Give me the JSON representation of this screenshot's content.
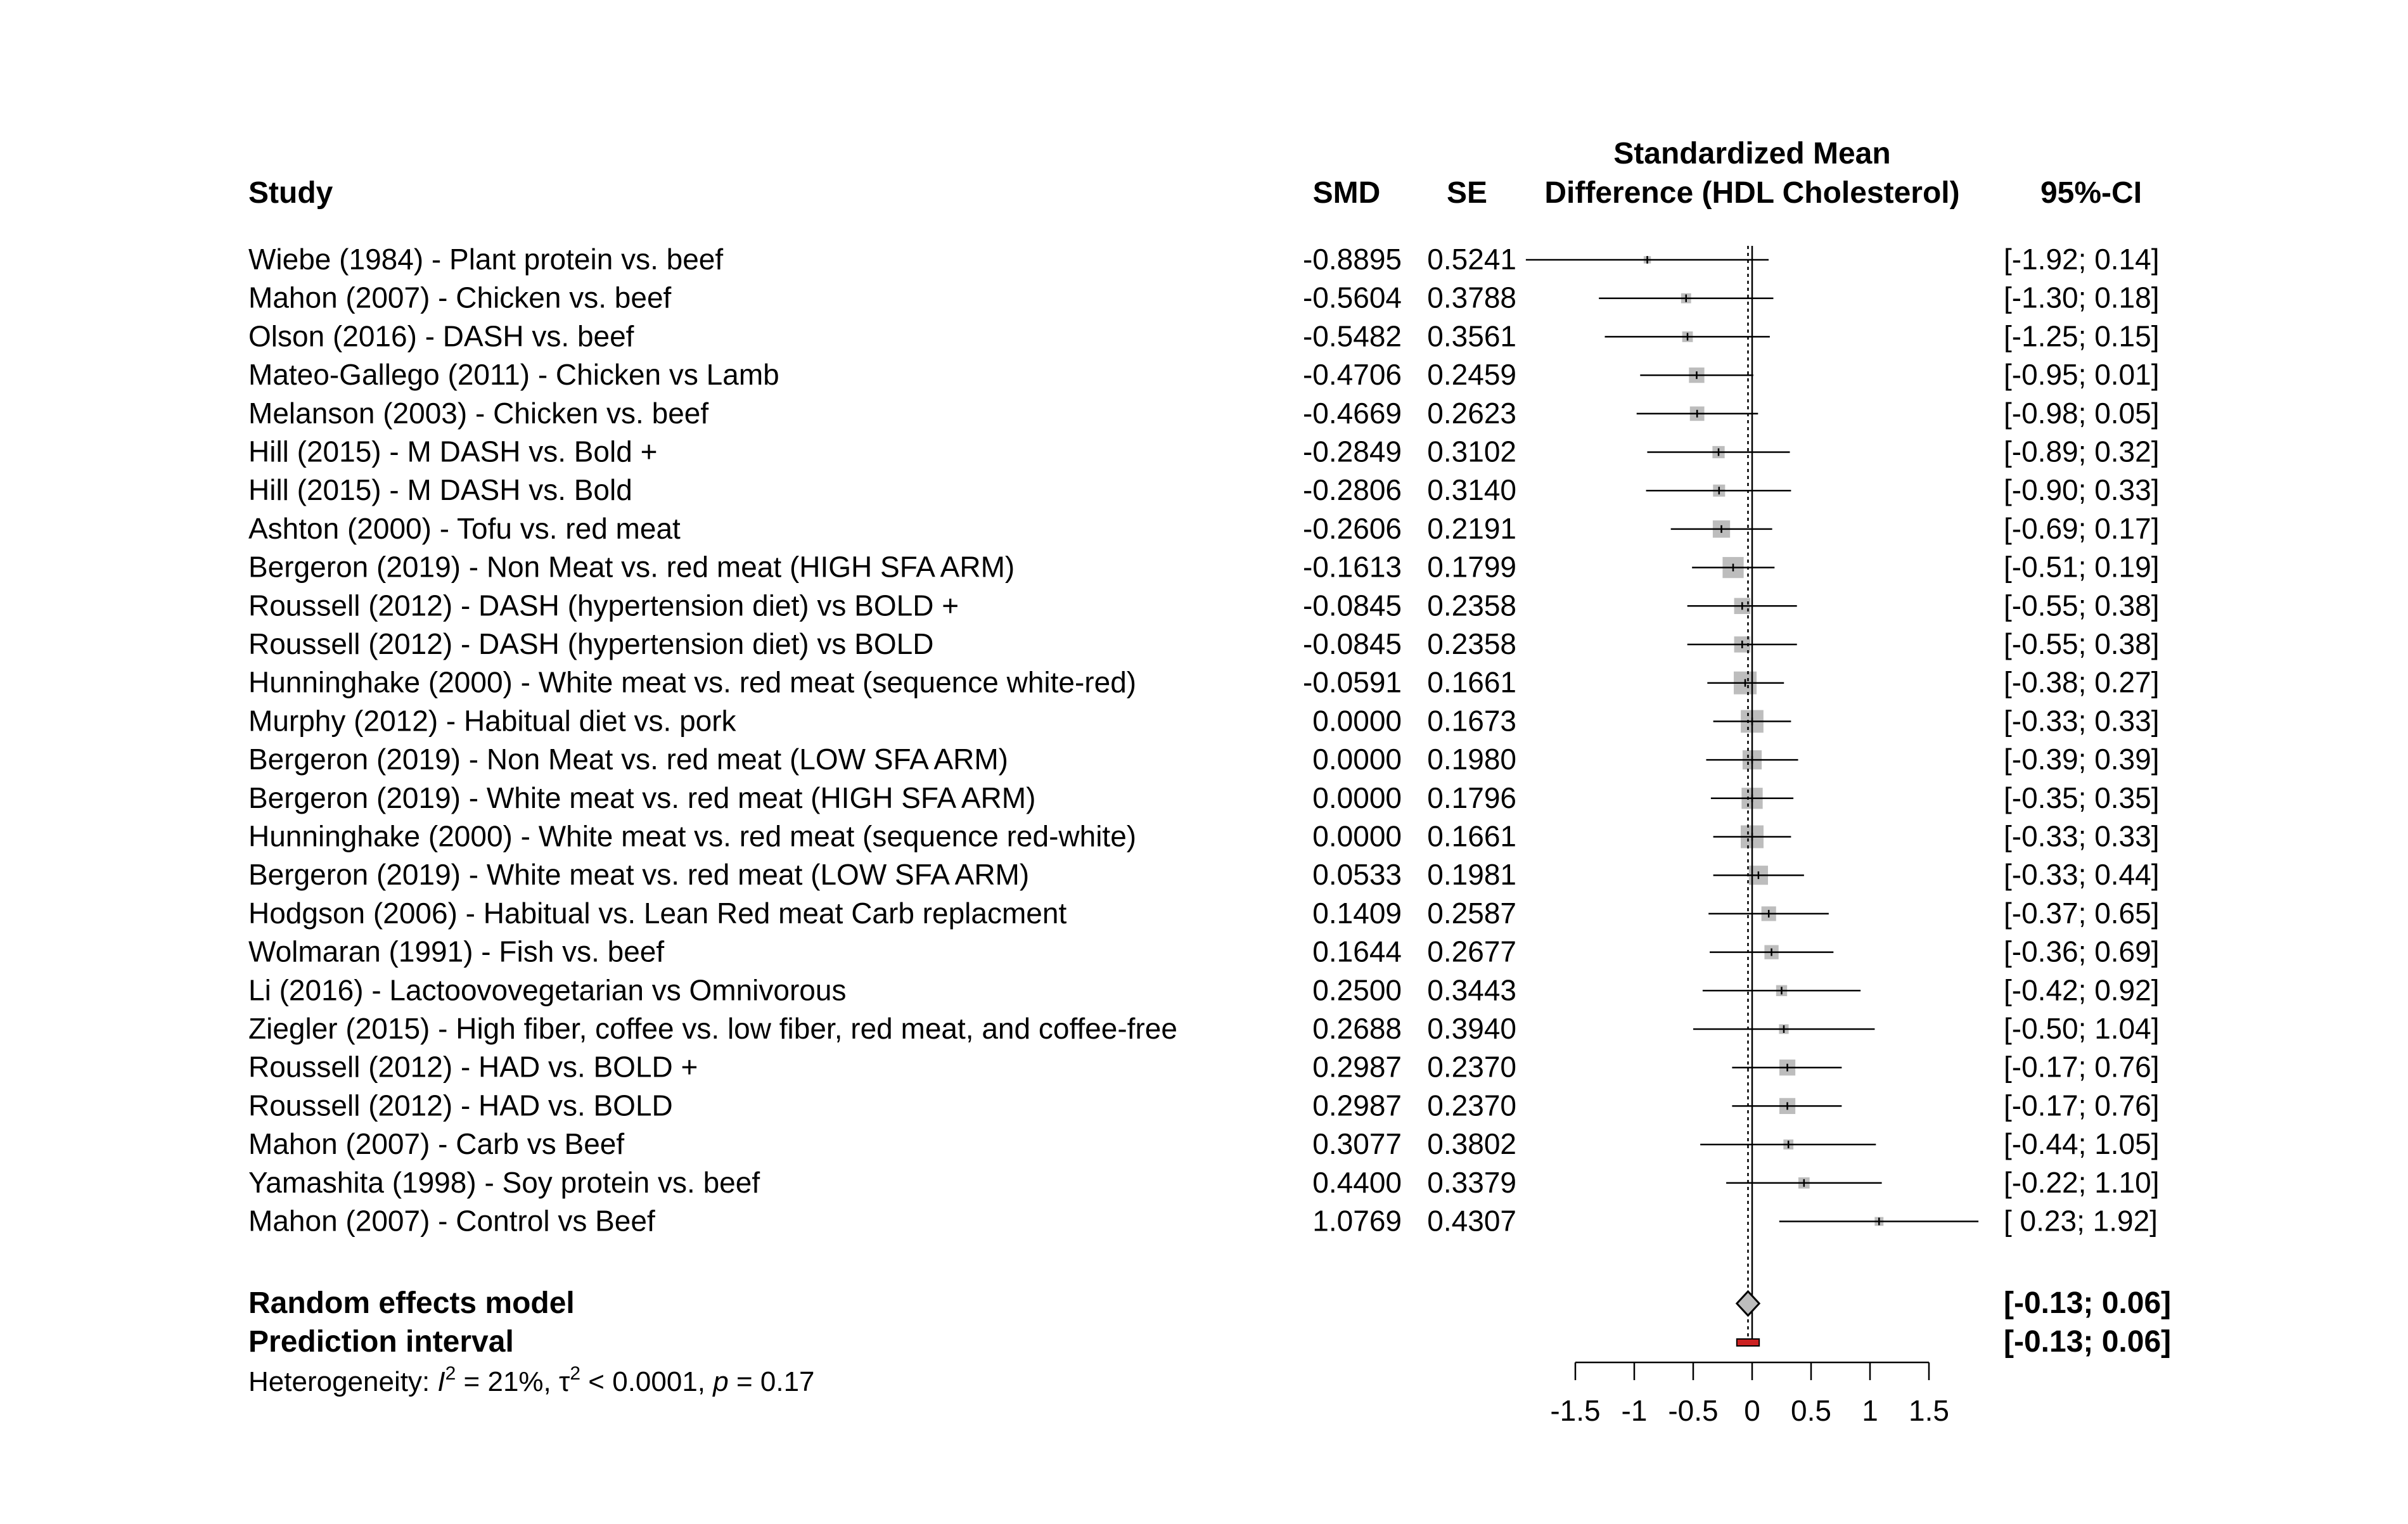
{
  "headers": {
    "study": "Study",
    "smd": "SMD",
    "se": "SE",
    "plot_line1": "Standardized Mean",
    "plot_line2": "Difference (HDL Cholesterol)",
    "ci": "95%-CI"
  },
  "summary": {
    "random_label": "Random effects model",
    "random_ci": "[-0.13; 0.06]",
    "random_estimate": -0.035,
    "random_lower": -0.13,
    "random_upper": 0.06,
    "prediction_label": "Prediction interval",
    "prediction_ci": "[-0.13; 0.06]",
    "prediction_lower": -0.13,
    "prediction_upper": 0.06,
    "prediction_color": "#cc2222",
    "heterogeneity": {
      "prefix": "Heterogeneity: ",
      "i_sym": "I",
      "sup": "2",
      "i_val": " = 21%, ",
      "tau_sym": "τ",
      "tau_val": " < 0.0001, ",
      "p_sym": "p",
      "p_val": " = 0.17"
    }
  },
  "colors": {
    "square": "#bdbdbd",
    "diamond": "#bdbdbd",
    "line": "#000000"
  },
  "chart_data": {
    "type": "forest",
    "xlim": [
      -1.5,
      1.5
    ],
    "ticks": [
      -1.5,
      -1,
      -0.5,
      0,
      0.5,
      1,
      1.5
    ],
    "tick_labels": [
      "-1.5",
      "-1",
      "-0.5",
      "0",
      "0.5",
      "1",
      "1.5"
    ],
    "studies": [
      {
        "label": "Wiebe (1984) - Plant protein vs. beef",
        "smd": -0.8895,
        "smd_text": "-0.8895",
        "se_text": "0.5241",
        "lower": -1.92,
        "upper": 0.14,
        "ci_text": "[-1.92; 0.14]"
      },
      {
        "label": "Mahon (2007) - Chicken vs. beef",
        "smd": -0.5604,
        "smd_text": "-0.5604",
        "se_text": "0.3788",
        "lower": -1.3,
        "upper": 0.18,
        "ci_text": "[-1.30; 0.18]"
      },
      {
        "label": "Olson (2016) - DASH vs. beef",
        "smd": -0.5482,
        "smd_text": "-0.5482",
        "se_text": "0.3561",
        "lower": -1.25,
        "upper": 0.15,
        "ci_text": "[-1.25; 0.15]"
      },
      {
        "label": "Mateo-Gallego (2011) - Chicken vs Lamb",
        "smd": -0.4706,
        "smd_text": "-0.4706",
        "se_text": "0.2459",
        "lower": -0.95,
        "upper": 0.01,
        "ci_text": "[-0.95; 0.01]"
      },
      {
        "label": "Melanson (2003) - Chicken vs. beef",
        "smd": -0.4669,
        "smd_text": "-0.4669",
        "se_text": "0.2623",
        "lower": -0.98,
        "upper": 0.05,
        "ci_text": "[-0.98; 0.05]"
      },
      {
        "label": "Hill (2015) - M DASH vs. Bold +",
        "smd": -0.2849,
        "smd_text": "-0.2849",
        "se_text": "0.3102",
        "lower": -0.89,
        "upper": 0.32,
        "ci_text": "[-0.89; 0.32]"
      },
      {
        "label": "Hill (2015) - M DASH vs. Bold",
        "smd": -0.2806,
        "smd_text": "-0.2806",
        "se_text": "0.3140",
        "lower": -0.9,
        "upper": 0.33,
        "ci_text": "[-0.90; 0.33]"
      },
      {
        "label": "Ashton (2000) - Tofu vs. red meat",
        "smd": -0.2606,
        "smd_text": "-0.2606",
        "se_text": "0.2191",
        "lower": -0.69,
        "upper": 0.17,
        "ci_text": "[-0.69; 0.17]"
      },
      {
        "label": "Bergeron (2019) - Non Meat vs. red meat   (HIGH SFA ARM)",
        "smd": -0.1613,
        "smd_text": "-0.1613",
        "se_text": "0.1799",
        "lower": -0.51,
        "upper": 0.19,
        "ci_text": "[-0.51; 0.19]"
      },
      {
        "label": "Roussell (2012) - DASH (hypertension diet) vs BOLD +",
        "smd": -0.0845,
        "smd_text": "-0.0845",
        "se_text": "0.2358",
        "lower": -0.55,
        "upper": 0.38,
        "ci_text": "[-0.55; 0.38]"
      },
      {
        "label": "Roussell (2012) - DASH (hypertension diet) vs BOLD",
        "smd": -0.0845,
        "smd_text": "-0.0845",
        "se_text": "0.2358",
        "lower": -0.55,
        "upper": 0.38,
        "ci_text": "[-0.55; 0.38]"
      },
      {
        "label": "Hunninghake (2000) - White meat vs. red meat (sequence white-red)",
        "smd": -0.0591,
        "smd_text": "-0.0591",
        "se_text": "0.1661",
        "lower": -0.38,
        "upper": 0.27,
        "ci_text": "[-0.38; 0.27]"
      },
      {
        "label": "Murphy (2012) - Habitual diet vs. pork",
        "smd": 0.0,
        "smd_text": "0.0000",
        "se_text": "0.1673",
        "lower": -0.33,
        "upper": 0.33,
        "ci_text": "[-0.33; 0.33]"
      },
      {
        "label": "Bergeron (2019) - Non Meat vs. red meat   (LOW SFA ARM)",
        "smd": 0.0,
        "smd_text": "0.0000",
        "se_text": "0.1980",
        "lower": -0.39,
        "upper": 0.39,
        "ci_text": "[-0.39; 0.39]"
      },
      {
        "label": "Bergeron (2019) - White meat vs. red meat   (HIGH SFA ARM)",
        "smd": 0.0,
        "smd_text": "0.0000",
        "se_text": "0.1796",
        "lower": -0.35,
        "upper": 0.35,
        "ci_text": "[-0.35; 0.35]"
      },
      {
        "label": "Hunninghake (2000) - White meat vs. red meat (sequence red-white)",
        "smd": 0.0,
        "smd_text": "0.0000",
        "se_text": "0.1661",
        "lower": -0.33,
        "upper": 0.33,
        "ci_text": "[-0.33; 0.33]"
      },
      {
        "label": "Bergeron (2019) - White meat vs. red meat   (LOW SFA ARM)",
        "smd": 0.0533,
        "smd_text": "0.0533",
        "se_text": "0.1981",
        "lower": -0.33,
        "upper": 0.44,
        "ci_text": "[-0.33; 0.44]"
      },
      {
        "label": "Hodgson (2006) - Habitual vs. Lean Red meat Carb replacment",
        "smd": 0.1409,
        "smd_text": "0.1409",
        "se_text": "0.2587",
        "lower": -0.37,
        "upper": 0.65,
        "ci_text": "[-0.37; 0.65]"
      },
      {
        "label": "Wolmaran (1991) - Fish vs. beef",
        "smd": 0.1644,
        "smd_text": "0.1644",
        "se_text": "0.2677",
        "lower": -0.36,
        "upper": 0.69,
        "ci_text": "[-0.36; 0.69]"
      },
      {
        "label": "Li (2016) - Lactoovovegetarian vs Omnivorous",
        "smd": 0.25,
        "smd_text": "0.2500",
        "se_text": "0.3443",
        "lower": -0.42,
        "upper": 0.92,
        "ci_text": "[-0.42; 0.92]"
      },
      {
        "label": "Ziegler (2015) - High fiber, coffee vs. low fiber, red meat, and coffee-free",
        "smd": 0.2688,
        "smd_text": "0.2688",
        "se_text": "0.3940",
        "lower": -0.5,
        "upper": 1.04,
        "ci_text": "[-0.50; 1.04]"
      },
      {
        "label": "Roussell (2012) - HAD vs. BOLD +",
        "smd": 0.2987,
        "smd_text": "0.2987",
        "se_text": "0.2370",
        "lower": -0.17,
        "upper": 0.76,
        "ci_text": "[-0.17; 0.76]"
      },
      {
        "label": "Roussell (2012) - HAD vs. BOLD",
        "smd": 0.2987,
        "smd_text": "0.2987",
        "se_text": "0.2370",
        "lower": -0.17,
        "upper": 0.76,
        "ci_text": "[-0.17; 0.76]"
      },
      {
        "label": "Mahon (2007) - Carb vs Beef",
        "smd": 0.3077,
        "smd_text": "0.3077",
        "se_text": "0.3802",
        "lower": -0.44,
        "upper": 1.05,
        "ci_text": "[-0.44; 1.05]"
      },
      {
        "label": "Yamashita (1998) - Soy protein vs. beef",
        "smd": 0.44,
        "smd_text": "0.4400",
        "se_text": "0.3379",
        "lower": -0.22,
        "upper": 1.1,
        "ci_text": "[-0.22; 1.10]"
      },
      {
        "label": "Mahon (2007) - Control vs Beef",
        "smd": 1.0769,
        "smd_text": "1.0769",
        "se_text": "0.4307",
        "lower": 0.23,
        "upper": 1.92,
        "ci_text": "[ 0.23; 1.92]"
      }
    ]
  }
}
